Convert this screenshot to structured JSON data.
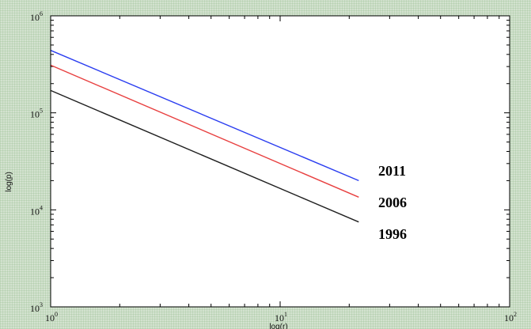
{
  "chart_data": {
    "type": "line",
    "title": "",
    "xlabel": "log(r)",
    "ylabel": "log(p)",
    "xscale": "log",
    "yscale": "log",
    "xlim": [
      1,
      100
    ],
    "ylim": [
      1000,
      1000000
    ],
    "grid": false,
    "x_ticks": [
      {
        "base": "10",
        "exp": "0",
        "value": 1
      },
      {
        "base": "10",
        "exp": "1",
        "value": 10
      },
      {
        "base": "10",
        "exp": "2",
        "value": 100
      }
    ],
    "y_ticks": [
      {
        "base": "10",
        "exp": "3",
        "value": 1000
      },
      {
        "base": "10",
        "exp": "4",
        "value": 10000
      },
      {
        "base": "10",
        "exp": "5",
        "value": 100000
      },
      {
        "base": "10",
        "exp": "6",
        "value": 1000000
      }
    ],
    "series": [
      {
        "name": "2011",
        "color": "#2a3df0",
        "x": [
          1,
          22
        ],
        "y": [
          440000,
          20000
        ]
      },
      {
        "name": "2006",
        "color": "#e84040",
        "x": [
          1,
          22
        ],
        "y": [
          310000,
          13500
        ]
      },
      {
        "name": "1996",
        "color": "#202020",
        "x": [
          1,
          22
        ],
        "y": [
          170000,
          7500
        ]
      }
    ],
    "annotations": [
      "2011",
      "2006",
      "1996"
    ]
  }
}
